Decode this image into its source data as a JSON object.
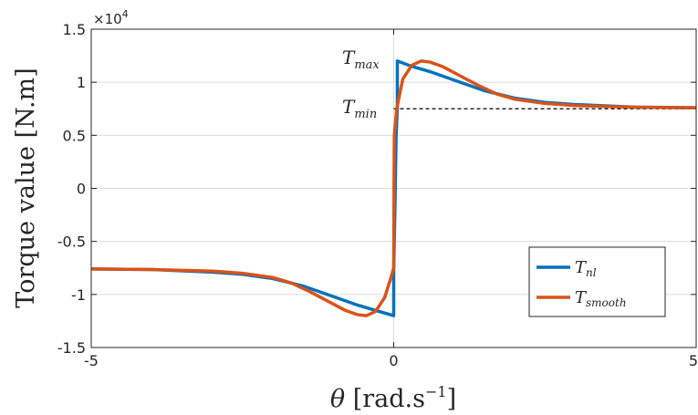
{
  "chart_data": {
    "type": "line",
    "xlabel_var": "θ",
    "xlabel_unit": "[rad.s",
    "xlabel_exp": "−1",
    "xlabel_close": "]",
    "ylabel": "Torque value [N.m]",
    "exponent_base": "×10",
    "exponent_power": "4",
    "xlim": [
      -5,
      5
    ],
    "ylim": [
      -15000,
      15000
    ],
    "x_ticks": [
      -5,
      0,
      5
    ],
    "x_tick_labels": [
      "-5",
      "0",
      "5"
    ],
    "y_ticks": [
      -15000,
      -10000,
      -5000,
      0,
      5000,
      10000,
      15000
    ],
    "y_tick_labels": [
      "-1.5",
      "-1",
      "-0.5",
      "0",
      "0.5",
      "1",
      "1.5"
    ],
    "grid": true,
    "legend_position": "bottom-right",
    "series": [
      {
        "name_main": "T",
        "name_sub": "nl",
        "color": "#0072BD",
        "points": [
          [
            -5,
            -7600
          ],
          [
            -4,
            -7650
          ],
          [
            -3,
            -7900
          ],
          [
            -2.5,
            -8100
          ],
          [
            -2,
            -8500
          ],
          [
            -1.5,
            -9200
          ],
          [
            -1,
            -10200
          ],
          [
            -0.6,
            -11000
          ],
          [
            -0.3,
            -11500
          ],
          [
            0,
            -12000
          ],
          [
            0,
            -7700
          ],
          [
            0.02,
            -2000
          ],
          [
            0.04,
            5000
          ],
          [
            0.06,
            7500
          ],
          [
            0.06,
            12000
          ],
          [
            0.3,
            11500
          ],
          [
            0.6,
            11000
          ],
          [
            1,
            10200
          ],
          [
            1.5,
            9200
          ],
          [
            2,
            8500
          ],
          [
            2.5,
            8100
          ],
          [
            3,
            7900
          ],
          [
            4,
            7650
          ],
          [
            5,
            7600
          ]
        ]
      },
      {
        "name_main": "T",
        "name_sub": "smooth",
        "color": "#D95319",
        "points": [
          [
            -5,
            -7600
          ],
          [
            -4,
            -7650
          ],
          [
            -3,
            -7800
          ],
          [
            -2.5,
            -8000
          ],
          [
            -2,
            -8400
          ],
          [
            -1.7,
            -8900
          ],
          [
            -1.4,
            -9700
          ],
          [
            -1.1,
            -10600
          ],
          [
            -0.8,
            -11500
          ],
          [
            -0.6,
            -11900
          ],
          [
            -0.45,
            -12000
          ],
          [
            -0.3,
            -11600
          ],
          [
            -0.15,
            -10300
          ],
          [
            -0.05,
            -8500
          ],
          [
            0,
            -7500
          ],
          [
            0.005,
            0
          ],
          [
            0.01,
            5000
          ],
          [
            0.05,
            7500
          ],
          [
            0.15,
            10300
          ],
          [
            0.3,
            11600
          ],
          [
            0.45,
            12000
          ],
          [
            0.6,
            11900
          ],
          [
            0.8,
            11500
          ],
          [
            1.1,
            10600
          ],
          [
            1.4,
            9700
          ],
          [
            1.7,
            8900
          ],
          [
            2,
            8400
          ],
          [
            2.5,
            8000
          ],
          [
            3,
            7800
          ],
          [
            4,
            7650
          ],
          [
            5,
            7600
          ]
        ]
      }
    ],
    "annotations": {
      "tmax": {
        "main": "T",
        "sub": "max"
      },
      "tmin": {
        "main": "T",
        "sub": "min"
      },
      "tmin_value": 7500
    }
  }
}
